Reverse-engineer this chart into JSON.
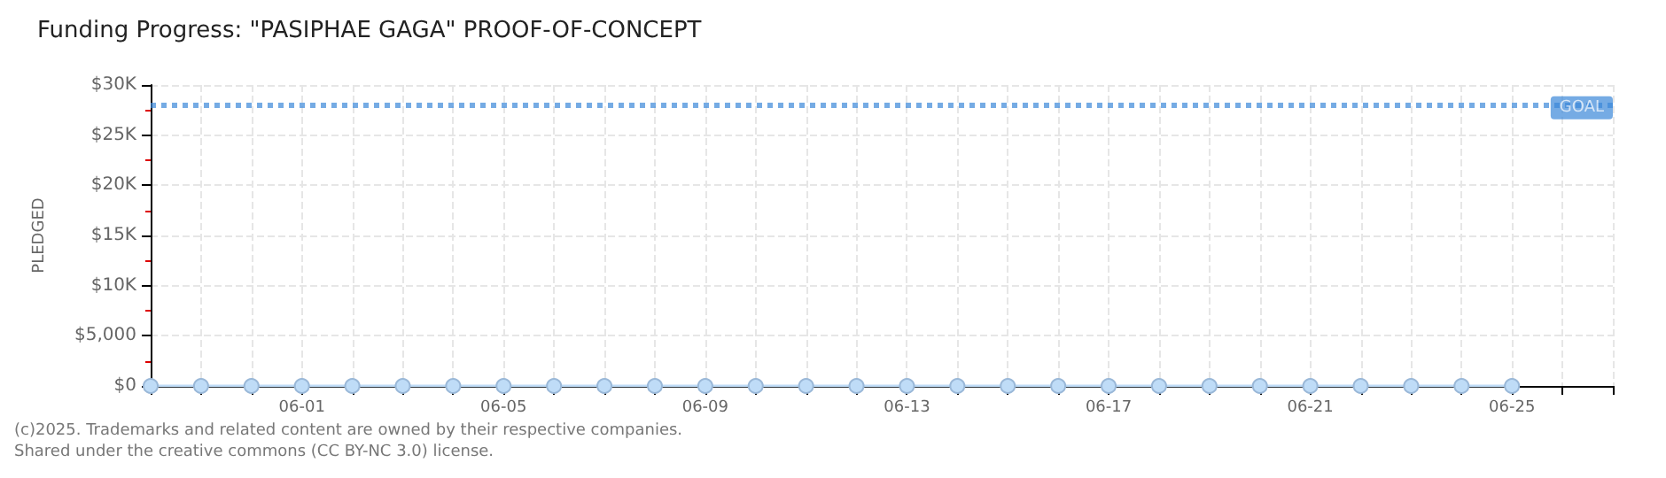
{
  "chart_data": {
    "type": "line",
    "title": "Funding Progress: \"PASIPHAE GAGA\" PROOF-OF-CONCEPT",
    "ylabel": "PLEDGED",
    "x": [
      "--05-29",
      "--05-30",
      "--05-31",
      "--06-01",
      "--06-02",
      "--06-03",
      "--06-04",
      "--06-05",
      "--06-06",
      "--06-07",
      "--06-08",
      "--06-09",
      "--06-10",
      "--06-11",
      "--06-12",
      "--06-13",
      "--06-14",
      "--06-15",
      "--06-16",
      "--06-17",
      "--06-18",
      "--06-19",
      "--06-20",
      "--06-21",
      "--06-22",
      "--06-23",
      "--06-24",
      "--06-25"
    ],
    "series": [
      {
        "color": "#bfdcf7",
        "values": [
          0,
          0,
          0,
          0,
          0,
          0,
          0,
          0,
          0,
          0,
          0,
          0,
          0,
          0,
          0,
          0,
          0,
          0,
          0,
          0,
          0,
          0,
          0,
          0,
          0,
          0,
          0,
          0
        ]
      }
    ],
    "xlim": [
      "--05-29",
      "--06-27"
    ],
    "xticks": [
      {
        "value": "--05-29",
        "label": null
      },
      {
        "value": "--05-30",
        "label": null
      },
      {
        "value": "--05-31",
        "label": null
      },
      {
        "value": "--06-01",
        "label": "06-01"
      },
      {
        "value": "--06-02",
        "label": null
      },
      {
        "value": "--06-03",
        "label": null
      },
      {
        "value": "--06-04",
        "label": null
      },
      {
        "value": "--06-05",
        "label": "06-05"
      },
      {
        "value": "--06-06",
        "label": null
      },
      {
        "value": "--06-07",
        "label": null
      },
      {
        "value": "--06-08",
        "label": null
      },
      {
        "value": "--06-09",
        "label": "06-09"
      },
      {
        "value": "--06-10",
        "label": null
      },
      {
        "value": "--06-11",
        "label": null
      },
      {
        "value": "--06-12",
        "label": null
      },
      {
        "value": "--06-13",
        "label": "06-13"
      },
      {
        "value": "--06-14",
        "label": null
      },
      {
        "value": "--06-15",
        "label": null
      },
      {
        "value": "--06-16",
        "label": null
      },
      {
        "value": "--06-17",
        "label": "06-17"
      },
      {
        "value": "--06-18",
        "label": null
      },
      {
        "value": "--06-19",
        "label": null
      },
      {
        "value": "--06-20",
        "label": null
      },
      {
        "value": "--06-21",
        "label": "06-21"
      },
      {
        "value": "--06-22",
        "label": null
      },
      {
        "value": "--06-23",
        "label": null
      },
      {
        "value": "--06-24",
        "label": null
      },
      {
        "value": "--06-25",
        "label": "06-25"
      },
      {
        "value": "--06-26",
        "label": null
      },
      {
        "value": "--06-27",
        "label": null
      }
    ],
    "ylim": [
      0,
      30000
    ],
    "yticks": [
      {
        "value": 0,
        "label": "$0"
      },
      {
        "value": 5000,
        "label": "$5,000"
      },
      {
        "value": 10000,
        "label": "$10K"
      },
      {
        "value": 15000,
        "label": "$15K"
      },
      {
        "value": 20000,
        "label": "$20K"
      },
      {
        "value": 25000,
        "label": "$25K"
      },
      {
        "value": 30000,
        "label": "$30K"
      }
    ],
    "ref_lines": [
      {
        "axis": "y",
        "value": 28000,
        "label": "GOAL",
        "color": "#3b87d9",
        "line_style": "dotted"
      }
    ],
    "grid": true,
    "marker": "circle",
    "line_style": "solid",
    "annotations": [
      "(c)2025. Trademarks and related content are owned by their respective companies.",
      "Shared under the creative commons (CC BY-NC 3.0) license."
    ]
  }
}
